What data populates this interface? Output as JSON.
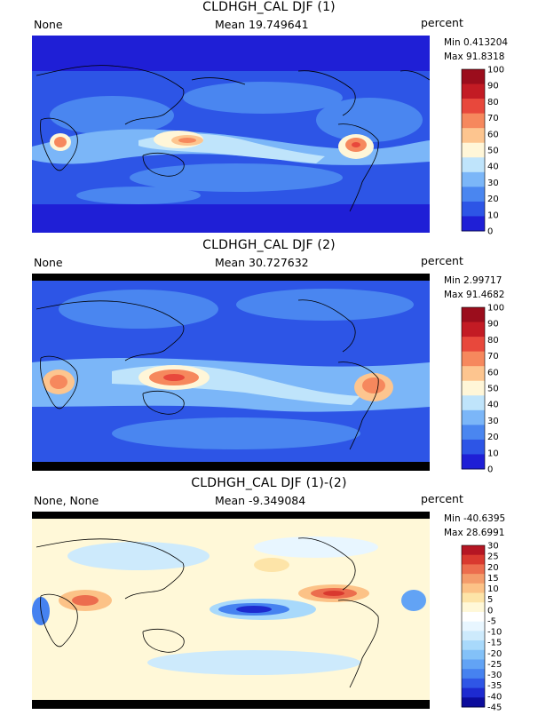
{
  "colors": {
    "sequential": [
      "#1f1fd6",
      "#2d55e6",
      "#4a86f0",
      "#7bb6f8",
      "#bfe4fb",
      "#fff6d8",
      "#fdc58f",
      "#f6885d",
      "#e8483c",
      "#c31b24",
      "#9b0d1c"
    ],
    "diverging": [
      "#0c0c9c",
      "#1d2ad0",
      "#2f56e6",
      "#4682f0",
      "#62a3f5",
      "#83c1f8",
      "#a8d9fb",
      "#cdeafc",
      "#e8f6ff",
      "#ffffff",
      "#fff8d8",
      "#fde4a8",
      "#fcc287",
      "#f49c6b",
      "#ec6d4e",
      "#d9392f",
      "#b51623"
    ]
  },
  "panels": [
    {
      "title": "CLDHGH_CAL DJF (1)",
      "left_label": "None",
      "mean_label": "Mean 19.749641",
      "units": "percent",
      "min_label": "Min 0.413204",
      "max_label": "Max 91.8318",
      "palette": "sequential",
      "colorbar_labels": [
        "100",
        "90",
        "80",
        "70",
        "60",
        "50",
        "40",
        "30",
        "20",
        "10",
        "0"
      ]
    },
    {
      "title": "CLDHGH_CAL DJF (2)",
      "left_label": "None",
      "mean_label": "Mean 30.727632",
      "units": "percent",
      "min_label": "Min 2.99717",
      "max_label": "Max 91.4682",
      "palette": "sequential",
      "colorbar_labels": [
        "100",
        "90",
        "80",
        "70",
        "60",
        "50",
        "40",
        "30",
        "20",
        "10",
        "0"
      ]
    },
    {
      "title": "CLDHGH_CAL DJF (1)-(2)",
      "left_label": "None, None",
      "mean_label": "Mean -9.349084",
      "units": "percent",
      "min_label": "Min -40.6395",
      "max_label": "Max 28.6991",
      "palette": "diverging",
      "colorbar_labels": [
        "30",
        "25",
        "20",
        "15",
        "10",
        "5",
        "0",
        "-5",
        "-10",
        "-15",
        "-20",
        "-25",
        "-30",
        "-35",
        "-40",
        "-45"
      ]
    }
  ]
}
